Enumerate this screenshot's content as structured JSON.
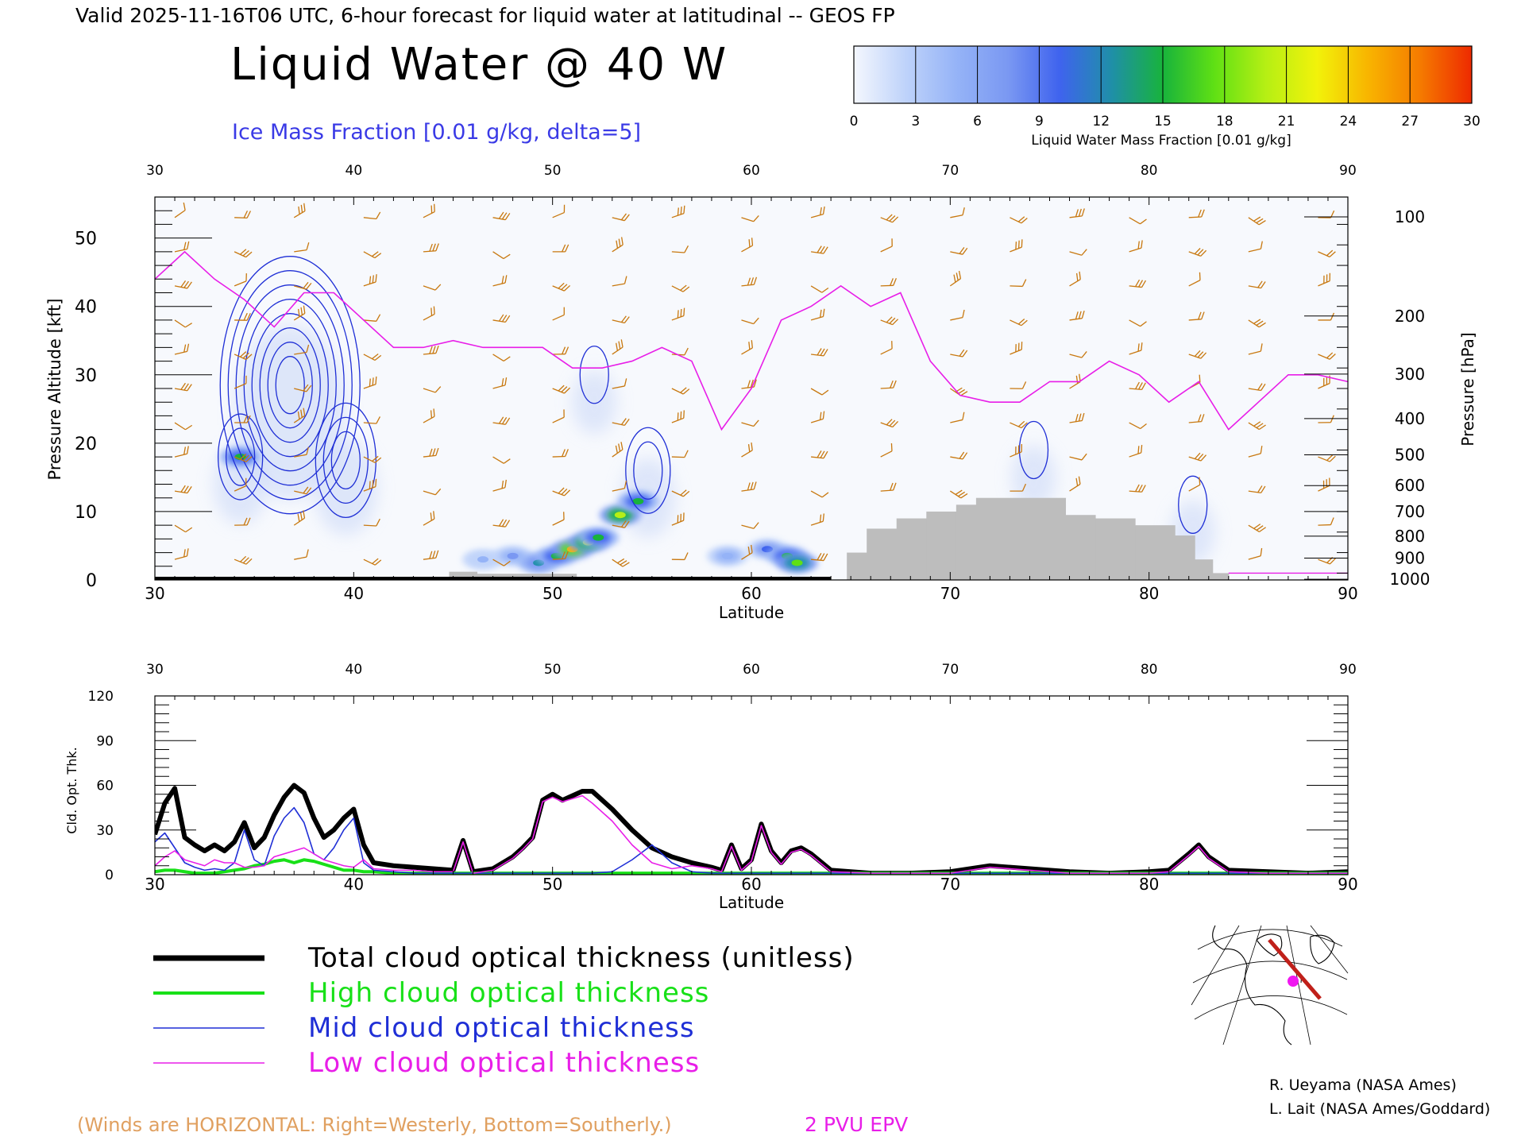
{
  "header": {
    "valid_line": "Valid 2025-11-16T06 UTC, 6-hour forecast for liquid water at latitudinal -- GEOS FP",
    "title": "Liquid Water @ 40 W",
    "subtitle": "Ice Mass Fraction [0.01 g/kg, delta=5]"
  },
  "colorbar": {
    "label": "Liquid Water Mass Fraction [0.01 g/kg]",
    "ticks": [
      "0",
      "3",
      "6",
      "9",
      "12",
      "15",
      "18",
      "21",
      "24",
      "27",
      "30"
    ],
    "colors": [
      "#f4f7fe",
      "#bfd3fa",
      "#95b3f7",
      "#7a98f2",
      "#3f63ee",
      "#1f8fa8",
      "#18b33c",
      "#5fe014",
      "#b6ef14",
      "#f2f20a",
      "#f8b400",
      "#f57a00",
      "#ee2a00"
    ]
  },
  "colors": {
    "wind": "#c8780f",
    "ice_contour": "#1f2fd6",
    "epv": "#e81ee8",
    "terrain": "#bdbdbd",
    "total": "#000000",
    "high": "#18e018",
    "mid": "#1f2fd6",
    "low": "#e81ee8",
    "winds_note": "#e0a060"
  },
  "top_panel": {
    "xlabel": "Latitude",
    "ylabel_left": "Pressure Altitude [kft]",
    "ylabel_right": "Pressure [hPa]",
    "x_ticks": [
      "30",
      "40",
      "50",
      "60",
      "70",
      "80",
      "90"
    ],
    "y_ticks": [
      "0",
      "10",
      "20",
      "30",
      "40",
      "50"
    ],
    "p_ticks": [
      "100",
      "200",
      "300",
      "400",
      "500",
      "600",
      "700",
      "800",
      "900",
      "1000"
    ]
  },
  "bottom_panel": {
    "xlabel": "Latitude",
    "ylabel": "Cld. Opt. Thk.",
    "x_ticks": [
      "30",
      "40",
      "50",
      "60",
      "70",
      "80",
      "90"
    ],
    "y_ticks": [
      "0",
      "30",
      "60",
      "90",
      "120"
    ]
  },
  "legend": [
    {
      "label": "Total cloud optical thickness (unitless)",
      "color": "#000000"
    },
    {
      "label": "High cloud optical thickness",
      "color": "#18e018"
    },
    {
      "label": "Mid cloud optical thickness",
      "color": "#1f2fd6"
    },
    {
      "label": "Low cloud optical thickness",
      "color": "#e81ee8"
    }
  ],
  "footer": {
    "winds_note": "(Winds are HORIZONTAL: Right=Westerly, Bottom=Southerly.)",
    "epv_label": "2 PVU EPV",
    "credit1": "R. Ueyama (NASA Ames)",
    "credit2": "L. Lait (NASA Ames/Goddard)"
  },
  "chart_data": [
    {
      "type": "heatmap",
      "title": "Liquid Water @ 40 W",
      "xlabel": "Latitude",
      "ylabel": "Pressure Altitude [kft]",
      "xlim": [
        30,
        90
      ],
      "ylim": [
        0,
        56
      ],
      "pressure_levels_hPa": [
        100,
        200,
        300,
        400,
        500,
        600,
        700,
        800,
        900,
        1000
      ],
      "pressure_altitude_kft": [
        53.1,
        38.6,
        30.1,
        23.6,
        18.3,
        13.8,
        10.0,
        6.4,
        3.2,
        0.1
      ],
      "liquid_water_cells": [
        {
          "lat": 34.3,
          "alt": 18.0,
          "value": 16
        },
        {
          "lat": 46.5,
          "alt": 3.0,
          "value": 4
        },
        {
          "lat": 48.0,
          "alt": 3.5,
          "value": 8
        },
        {
          "lat": 49.3,
          "alt": 2.5,
          "value": 12
        },
        {
          "lat": 50.2,
          "alt": 3.5,
          "value": 16
        },
        {
          "lat": 51.0,
          "alt": 4.5,
          "value": 24
        },
        {
          "lat": 51.8,
          "alt": 5.5,
          "value": 20
        },
        {
          "lat": 52.3,
          "alt": 6.2,
          "value": 15
        },
        {
          "lat": 53.4,
          "alt": 9.5,
          "value": 20
        },
        {
          "lat": 54.3,
          "alt": 11.5,
          "value": 14
        },
        {
          "lat": 58.8,
          "alt": 3.5,
          "value": 6
        },
        {
          "lat": 60.8,
          "alt": 4.5,
          "value": 9
        },
        {
          "lat": 61.8,
          "alt": 3.5,
          "value": 15
        },
        {
          "lat": 62.3,
          "alt": 2.5,
          "value": 18
        }
      ],
      "ice_contour_centers": [
        {
          "lat": 36.8,
          "alt": 28.5,
          "rings": 8
        },
        {
          "lat": 39.6,
          "alt": 17.5,
          "rings": 3
        },
        {
          "lat": 34.3,
          "alt": 18.0,
          "rings": 2
        },
        {
          "lat": 54.8,
          "alt": 16.0,
          "rings": 2
        },
        {
          "lat": 52.1,
          "alt": 30.0,
          "rings": 1
        },
        {
          "lat": 74.2,
          "alt": 19.0,
          "rings": 1
        },
        {
          "lat": 82.2,
          "alt": 11.0,
          "rings": 1
        }
      ],
      "epv_2pvu": {
        "lat": [
          30,
          31.5,
          33,
          34.5,
          36,
          37.5,
          39,
          40.5,
          42,
          43.5,
          45,
          46.5,
          48,
          49.5,
          51,
          52.5,
          54,
          55.5,
          57,
          58.5,
          60,
          61.5,
          63,
          64.5,
          66,
          67.5,
          69,
          70.5,
          72,
          73.5,
          75,
          76.5,
          78,
          79.5,
          81,
          82.5,
          84,
          85.5,
          87,
          88.5,
          90
        ],
        "alt_kft": [
          44,
          48,
          44,
          41,
          37,
          42,
          42,
          38,
          34,
          34,
          35,
          34,
          34,
          34,
          31,
          31,
          32,
          34,
          32,
          22,
          28,
          38,
          40,
          43,
          40,
          42,
          32,
          27,
          26,
          26,
          29,
          29,
          32,
          30,
          26,
          29,
          22,
          26,
          30,
          30,
          29
        ]
      },
      "terrain": [
        {
          "lat_start": 44.8,
          "lat_end": 46.2,
          "top_kft": 1.2
        },
        {
          "lat_start": 46.2,
          "lat_end": 51.2,
          "top_kft": 0.9
        },
        {
          "lat_start": 64.8,
          "lat_end": 65.8,
          "top_kft": 4.0
        },
        {
          "lat_start": 65.8,
          "lat_end": 67.3,
          "top_kft": 7.5
        },
        {
          "lat_start": 67.3,
          "lat_end": 68.8,
          "top_kft": 9.0
        },
        {
          "lat_start": 68.8,
          "lat_end": 70.3,
          "top_kft": 10.0
        },
        {
          "lat_start": 70.3,
          "lat_end": 71.3,
          "top_kft": 11.0
        },
        {
          "lat_start": 71.3,
          "lat_end": 75.8,
          "top_kft": 12.0
        },
        {
          "lat_start": 75.8,
          "lat_end": 77.3,
          "top_kft": 9.5
        },
        {
          "lat_start": 77.3,
          "lat_end": 79.3,
          "top_kft": 9.0
        },
        {
          "lat_start": 79.3,
          "lat_end": 81.3,
          "top_kft": 8.0
        },
        {
          "lat_start": 81.3,
          "lat_end": 82.3,
          "top_kft": 6.5
        },
        {
          "lat_start": 82.3,
          "lat_end": 83.2,
          "top_kft": 3.0
        },
        {
          "lat_start": 83.2,
          "lat_end": 84.0,
          "top_kft": 1.0
        }
      ],
      "wind_columns_lat": [
        31,
        34,
        37,
        40.5,
        43.5,
        47,
        50,
        53,
        56,
        59.5,
        63,
        66.5,
        70,
        73,
        76,
        79,
        82,
        85,
        88.5
      ],
      "wind_levels_kft": [
        53,
        48,
        43,
        38,
        33,
        28,
        23,
        18,
        13,
        8,
        3
      ]
    },
    {
      "type": "line",
      "xlabel": "Latitude",
      "ylabel": "Cld. Opt. Thk.",
      "xlim": [
        30,
        90
      ],
      "ylim": [
        0,
        120
      ],
      "x": [
        30,
        30.5,
        31,
        31.5,
        32,
        32.5,
        33,
        33.5,
        34,
        34.5,
        35,
        35.5,
        36,
        36.5,
        37,
        37.5,
        38,
        38.5,
        39,
        39.5,
        40,
        40.5,
        41,
        42,
        43,
        44,
        45,
        45.5,
        46,
        47,
        48,
        48.5,
        49,
        49.5,
        50,
        50.5,
        51,
        51.5,
        52,
        53,
        54,
        55,
        56,
        57,
        58,
        58.5,
        59,
        59.5,
        60,
        60.5,
        61,
        61.5,
        62,
        62.5,
        63,
        64,
        66,
        68,
        70,
        72,
        74,
        76,
        78,
        80,
        81,
        82,
        82.5,
        83,
        84,
        86,
        88,
        90
      ],
      "series": [
        {
          "name": "Total cloud optical thickness (unitless)",
          "values": [
            27,
            48,
            58,
            25,
            20,
            16,
            20,
            16,
            22,
            35,
            18,
            25,
            40,
            52,
            60,
            55,
            38,
            25,
            30,
            38,
            44,
            20,
            8,
            6,
            5,
            4,
            3,
            23,
            2,
            4,
            12,
            18,
            25,
            50,
            54,
            50,
            53,
            56,
            56,
            44,
            30,
            18,
            12,
            8,
            5,
            3,
            20,
            4,
            10,
            34,
            16,
            8,
            16,
            18,
            14,
            3,
            1,
            1,
            2,
            6,
            4,
            2,
            1,
            2,
            3,
            14,
            20,
            12,
            3,
            2,
            1,
            2
          ]
        },
        {
          "name": "High cloud optical thickness",
          "values": [
            2,
            3,
            3,
            2,
            1,
            1,
            1,
            2,
            3,
            4,
            6,
            7,
            9,
            10,
            8,
            10,
            9,
            7,
            5,
            3,
            3,
            2,
            2,
            1,
            1,
            1,
            1,
            1,
            1,
            1,
            1,
            1,
            1,
            1,
            1,
            1,
            1,
            1,
            1,
            1,
            1,
            1,
            1,
            1,
            1,
            1,
            1,
            1,
            1,
            1,
            1,
            1,
            1,
            1,
            1,
            1,
            1,
            1,
            1,
            1,
            1,
            1,
            1,
            1,
            1,
            1,
            1,
            1,
            1,
            1,
            1,
            1
          ]
        },
        {
          "name": "Mid cloud optical thickness",
          "values": [
            22,
            28,
            18,
            8,
            5,
            3,
            4,
            3,
            8,
            30,
            10,
            6,
            26,
            38,
            45,
            35,
            14,
            10,
            18,
            30,
            38,
            8,
            3,
            2,
            1,
            1,
            1,
            1,
            1,
            1,
            1,
            1,
            1,
            1,
            1,
            1,
            1,
            1,
            1,
            2,
            10,
            20,
            8,
            2,
            1,
            1,
            1,
            1,
            1,
            1,
            1,
            1,
            1,
            1,
            1,
            1,
            1,
            1,
            1,
            1,
            1,
            1,
            1,
            1,
            1,
            1,
            1,
            1,
            1,
            1,
            1,
            1
          ]
        },
        {
          "name": "Low cloud optical thickness",
          "values": [
            6,
            12,
            16,
            10,
            8,
            6,
            10,
            8,
            8,
            5,
            5,
            6,
            12,
            14,
            16,
            18,
            14,
            10,
            8,
            6,
            5,
            10,
            4,
            3,
            3,
            2,
            2,
            22,
            1,
            3,
            11,
            17,
            24,
            49,
            52,
            49,
            51,
            53,
            48,
            36,
            20,
            8,
            4,
            6,
            4,
            2,
            19,
            3,
            9,
            33,
            15,
            7,
            15,
            17,
            13,
            2,
            1,
            1,
            1,
            5,
            3,
            1,
            1,
            1,
            2,
            13,
            19,
            11,
            2,
            1,
            1,
            1
          ]
        }
      ]
    }
  ]
}
